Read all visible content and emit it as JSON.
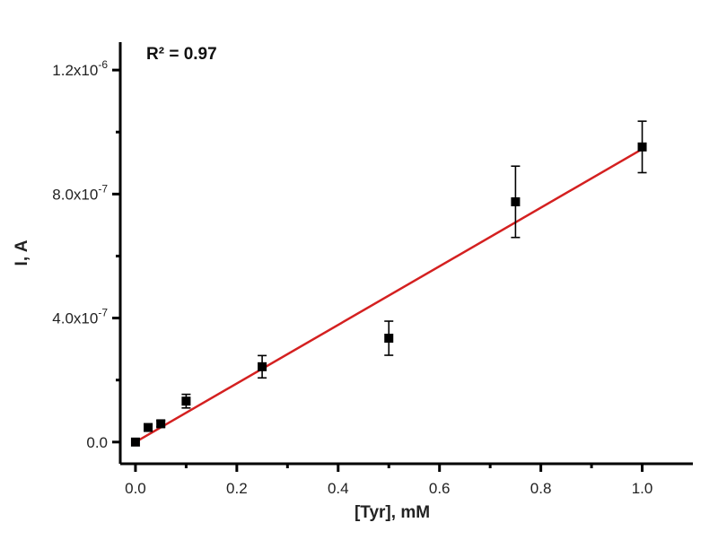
{
  "chart_data": {
    "type": "scatter",
    "xlabel": "[Tyr], mM",
    "ylabel": "I, A",
    "annotation": "R² = 0.97",
    "xlim": [
      -0.03,
      1.1
    ],
    "ylim": [
      -7e-08,
      1.29e-06
    ],
    "x_ticks": [
      {
        "value": 0.0,
        "label": "0.0"
      },
      {
        "value": 0.2,
        "label": "0.2"
      },
      {
        "value": 0.4,
        "label": "0.4"
      },
      {
        "value": 0.6,
        "label": "0.6"
      },
      {
        "value": 0.8,
        "label": "0.8"
      },
      {
        "value": 1.0,
        "label": "1.0"
      }
    ],
    "y_ticks": [
      {
        "value": 0.0,
        "label": "0.0"
      },
      {
        "value": 4e-07,
        "label": "4.0x10",
        "exp": "-7"
      },
      {
        "value": 8e-07,
        "label": "8.0x10",
        "exp": "-7"
      },
      {
        "value": 1.2e-06,
        "label": "1.2x10",
        "exp": "-6"
      }
    ],
    "points": [
      {
        "x": 0.0,
        "y": 0.0,
        "err": 0.0
      },
      {
        "x": 0.025,
        "y": 4.7e-08,
        "err": 1e-08
      },
      {
        "x": 0.05,
        "y": 5.9e-08,
        "err": 1e-08
      },
      {
        "x": 0.1,
        "y": 1.32e-07,
        "err": 2.2e-08
      },
      {
        "x": 0.25,
        "y": 2.43e-07,
        "err": 3.6e-08
      },
      {
        "x": 0.5,
        "y": 3.35e-07,
        "err": 5.5e-08
      },
      {
        "x": 0.75,
        "y": 7.75e-07,
        "err": 1.15e-07
      },
      {
        "x": 1.0,
        "y": 9.52e-07,
        "err": 8.3e-08
      }
    ],
    "fit": {
      "x": [
        0.0,
        1.0
      ],
      "y": [
        0.0,
        9.45e-07
      ],
      "color": "#d42020"
    },
    "point_color": "#000000"
  }
}
